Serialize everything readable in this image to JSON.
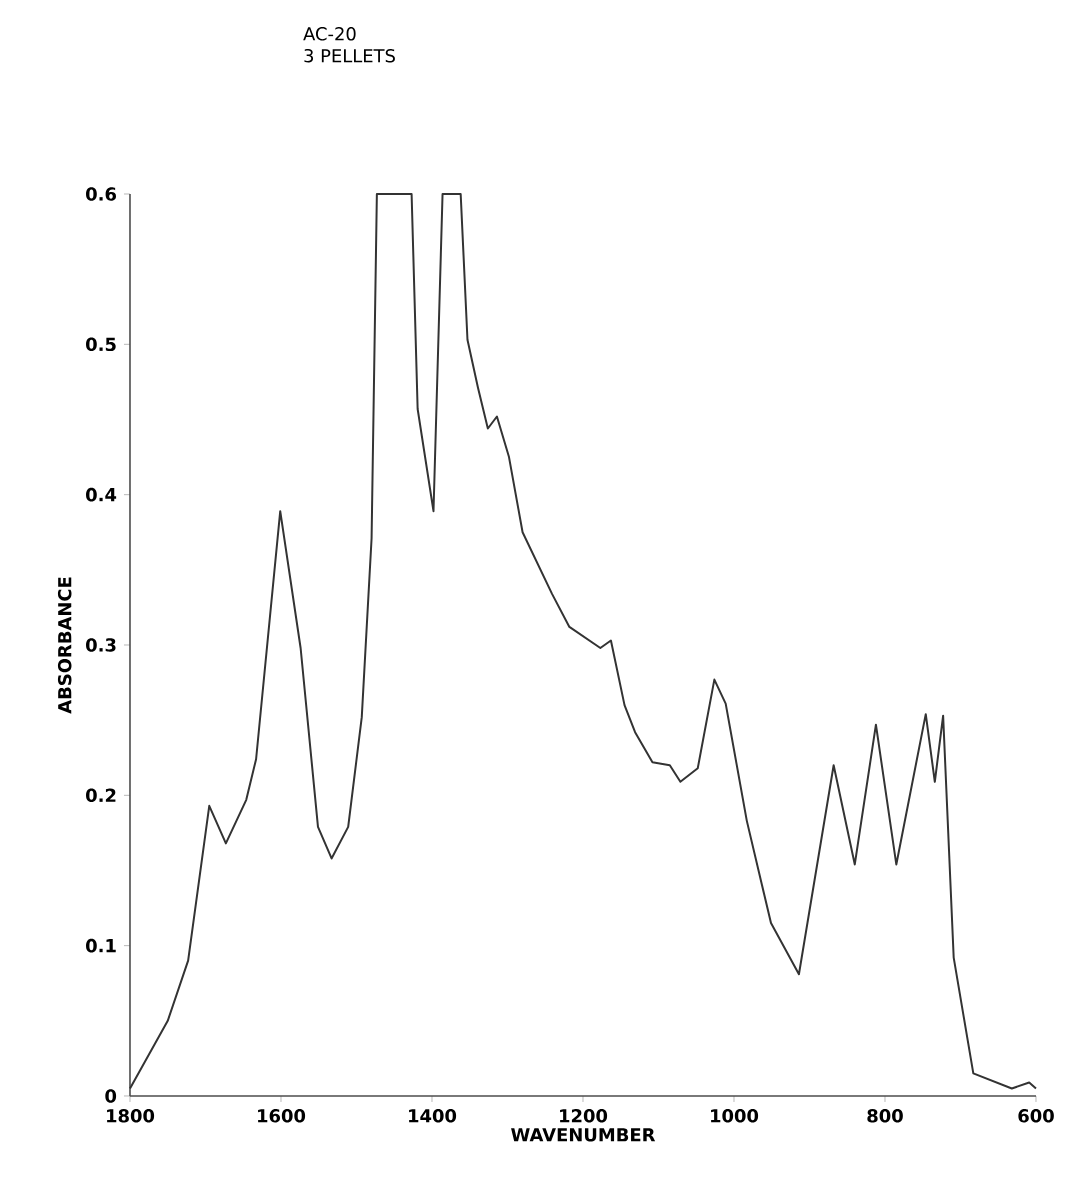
{
  "chart_data": {
    "type": "line",
    "title": "AC-20",
    "subtitle": "3 PELLETS",
    "xlabel": "WAVENUMBER",
    "ylabel": "ABSORBANCE",
    "x": [
      1800,
      1750,
      1723,
      1695,
      1673,
      1646,
      1633,
      1601,
      1574,
      1551,
      1533,
      1511,
      1493,
      1480,
      1473,
      1427,
      1419,
      1398,
      1386,
      1362,
      1353,
      1339,
      1326,
      1314,
      1298,
      1280,
      1241,
      1218,
      1177,
      1163,
      1145,
      1131,
      1108,
      1085,
      1071,
      1048,
      1026,
      1011,
      983,
      951,
      914,
      868,
      840,
      812,
      785,
      746,
      734,
      723,
      709,
      683,
      632,
      609,
      600
    ],
    "series": [
      {
        "color": "#333333",
        "values": [
          0.005,
          0.05,
          0.09,
          0.193,
          0.168,
          0.197,
          0.224,
          0.389,
          0.298,
          0.179,
          0.158,
          0.179,
          0.252,
          0.371,
          0.6,
          0.6,
          0.457,
          0.389,
          0.6,
          0.6,
          0.503,
          0.471,
          0.444,
          0.452,
          0.425,
          0.375,
          0.334,
          0.312,
          0.298,
          0.303,
          0.26,
          0.242,
          0.222,
          0.22,
          0.209,
          0.218,
          0.277,
          0.261,
          0.183,
          0.115,
          0.081,
          0.22,
          0.154,
          0.247,
          0.154,
          0.254,
          0.209,
          0.253,
          0.092,
          0.015,
          0.005,
          0.009,
          0.005
        ]
      }
    ],
    "xlim": [
      1800,
      600
    ],
    "xticks": [
      1800,
      1600,
      1400,
      1200,
      1000,
      800,
      600
    ],
    "ylim": [
      0,
      0.6
    ],
    "yticks": [
      0,
      0.1,
      0.2,
      0.3,
      0.4,
      0.5,
      0.6
    ],
    "marker": "none",
    "line_style": "solid"
  }
}
